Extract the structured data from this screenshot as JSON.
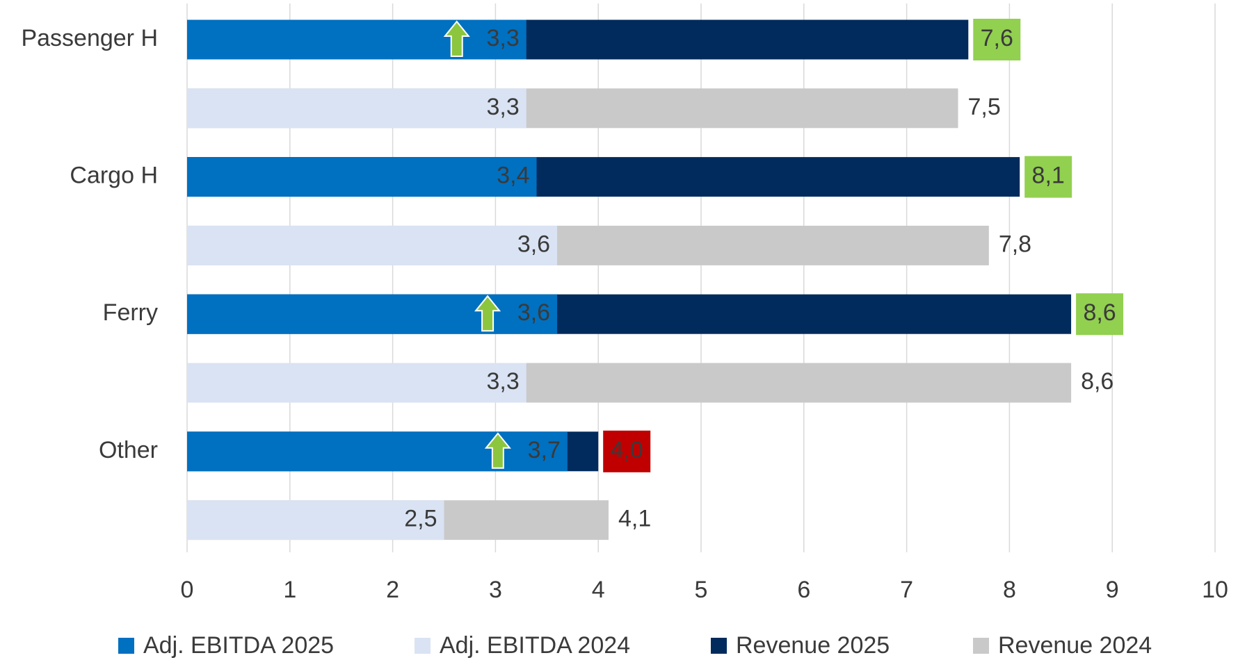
{
  "chart_data": {
    "type": "bar",
    "orientation": "horizontal",
    "categories": [
      "Passenger H",
      "Cargo H",
      "Ferry",
      "Other"
    ],
    "series": [
      {
        "name": "Adj. EBITDA 2025",
        "color": "#0070c0",
        "values": [
          3.3,
          3.4,
          3.6,
          3.7
        ],
        "value_labels": [
          "3,3",
          "3,4",
          "3,6",
          "3,7"
        ]
      },
      {
        "name": "Adj. EBITDA 2024",
        "color": "#dae3f3",
        "values": [
          3.3,
          3.6,
          3.3,
          2.5
        ],
        "value_labels": [
          "3,3",
          "3,6",
          "3,3",
          "2,5"
        ]
      },
      {
        "name": "Revenue 2025",
        "color": "#002b5c",
        "values": [
          7.6,
          8.1,
          8.6,
          4.0
        ],
        "value_labels": [
          "7,6",
          "8,1",
          "8,6",
          "4,0"
        ],
        "label_colors": [
          "#92d050",
          "#92d050",
          "#92d050",
          "#c00000"
        ]
      },
      {
        "name": "Revenue 2024",
        "color": "#c9c9c9",
        "values": [
          7.5,
          7.8,
          8.6,
          4.1
        ],
        "value_labels": [
          "7,5",
          "7,8",
          "8,6",
          "4,1"
        ]
      }
    ],
    "up_arrows": [
      true,
      false,
      true,
      true
    ],
    "xlim": [
      0,
      10
    ],
    "xticks": [
      0,
      1,
      2,
      3,
      4,
      5,
      6,
      7,
      8,
      9,
      10
    ],
    "grid": true,
    "legend": "bottom"
  }
}
